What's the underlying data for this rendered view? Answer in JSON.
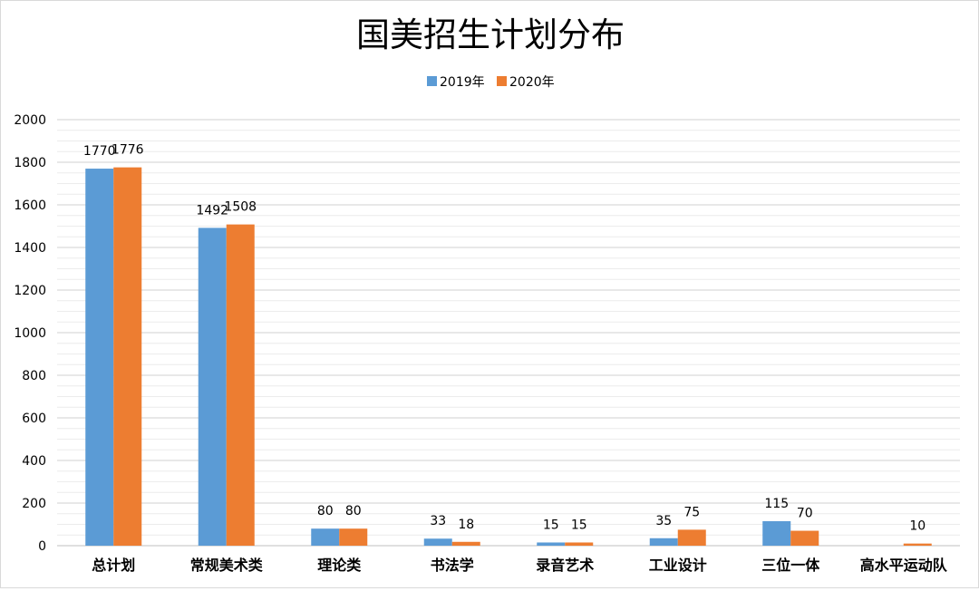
{
  "chart_data": {
    "type": "bar",
    "title": "国美招生计划分布",
    "xlabel": "",
    "ylabel": "",
    "ylim": [
      0,
      2000
    ],
    "yticks": [
      0,
      200,
      400,
      600,
      800,
      1000,
      1200,
      1400,
      1600,
      1800,
      2000
    ],
    "grid": true,
    "legend_position": "top-center",
    "categories": [
      "总计划",
      "常规美术类",
      "理论类",
      "书法学",
      "录音艺术",
      "工业设计",
      "三位一体",
      "高水平运动队"
    ],
    "series": [
      {
        "name": "2019年",
        "color": "#5b9bd5",
        "values": [
          1770,
          1492,
          80,
          33,
          15,
          35,
          115,
          null
        ],
        "labels": [
          "1770",
          "1492",
          "80",
          "33",
          "15",
          "35",
          "115",
          ""
        ]
      },
      {
        "name": "2020年",
        "color": "#ed7d31",
        "values": [
          1776,
          1508,
          80,
          18,
          15,
          75,
          70,
          10
        ],
        "labels": [
          "1776",
          "1508",
          "80",
          "18",
          "15",
          "75",
          "70",
          "10"
        ]
      }
    ]
  }
}
